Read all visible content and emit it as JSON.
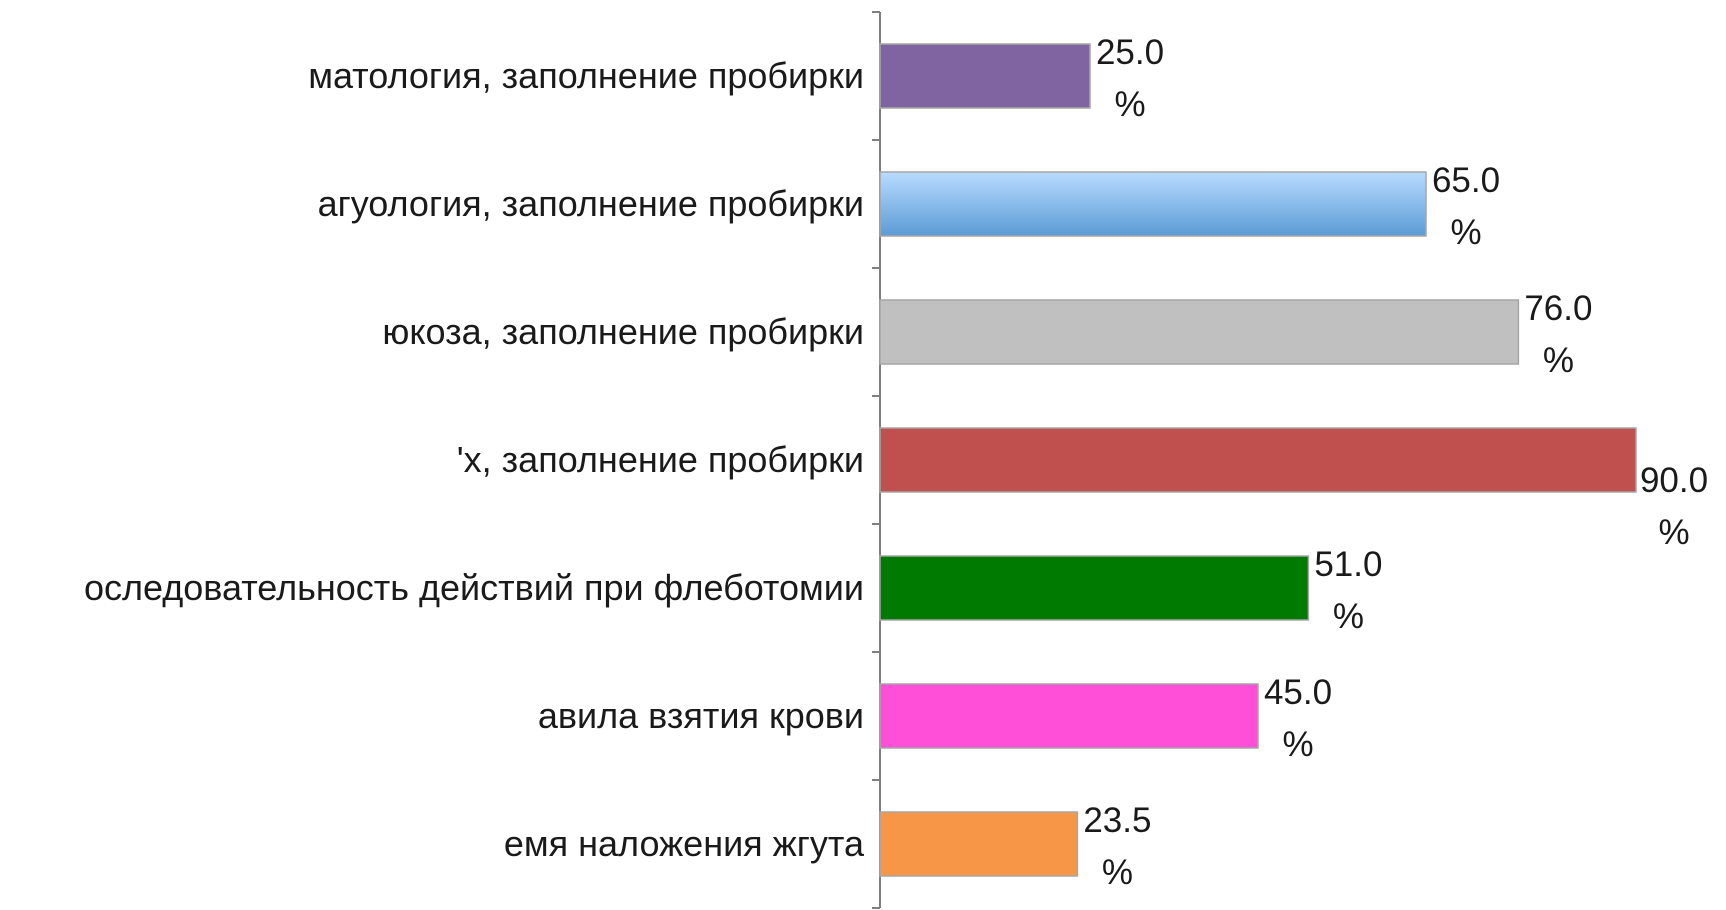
{
  "chart_data": {
    "type": "bar",
    "orientation": "horizontal",
    "categories": [
      "матология, заполнение пробирки",
      "агуология, заполнение пробирки",
      "юкоза, заполнение пробирки",
      "'х,  заполнение пробирки",
      "оследовательность действий при флеботомии",
      "авила взятия крови",
      "емя наложения жгута"
    ],
    "values": [
      25.0,
      65.0,
      76.0,
      90.0,
      51.0,
      45.0,
      23.5
    ],
    "value_labels": [
      "25.0",
      "65.0",
      "76.0",
      "90.0",
      "51.0",
      "45.0",
      "23.5"
    ],
    "unit": "%",
    "colors": [
      "#8064a2",
      "#5b9bd5",
      "#c0c0c0",
      "#c0504d",
      "#007a00",
      "#ff4fd8",
      "#f79646"
    ],
    "gradient_bar_index": 1,
    "gradient_light": "#b9dcff",
    "xlim": [
      0,
      100
    ],
    "grid": false,
    "legend": "none",
    "title": "",
    "xlabel": "",
    "ylabel": ""
  }
}
